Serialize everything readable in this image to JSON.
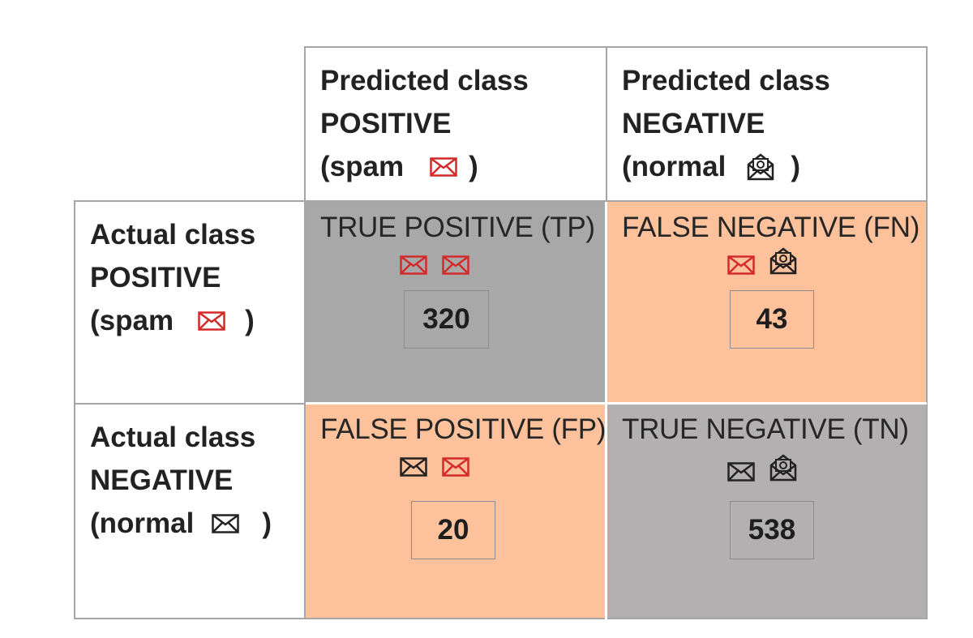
{
  "columns": [
    {
      "line1": "Predicted class",
      "line2": "POSITIVE",
      "open": "(spam",
      "close": ")",
      "icon": "red-envelope-icon"
    },
    {
      "line1": "Predicted class",
      "line2": "NEGATIVE",
      "open": "(normal",
      "close": ")",
      "icon": "open-envelope-at-icon"
    }
  ],
  "rows": [
    {
      "line1": "Actual class",
      "line2": "POSITIVE",
      "open": "(spam",
      "close": ")",
      "icon": "red-envelope-icon"
    },
    {
      "line1": "Actual class",
      "line2": "NEGATIVE",
      "open": "(normal",
      "close": ")",
      "icon": "black-envelope-icon"
    }
  ],
  "cells": {
    "tp": {
      "label": "TRUE POSITIVE (TP)",
      "value": "320",
      "color": "#a8a8a8",
      "icons": [
        "red-envelope-icon",
        "red-envelope-icon"
      ]
    },
    "fn": {
      "label": "FALSE NEGATIVE (FN)",
      "value": "43",
      "color": "#fdc29c",
      "icons": [
        "red-envelope-icon",
        "open-envelope-at-icon"
      ]
    },
    "fp": {
      "label": "FALSE POSITIVE (FP)",
      "value": "20",
      "color": "#fdc29c",
      "icons": [
        "black-envelope-icon",
        "red-envelope-icon"
      ]
    },
    "tn": {
      "label": "TRUE NEGATIVE (TN)",
      "value": "538",
      "color": "#b2b0b0",
      "icons": [
        "black-envelope-icon",
        "open-envelope-at-icon"
      ]
    }
  },
  "colors": {
    "border": "#a6a6a6",
    "red_icon": "#d42a2a",
    "black_icon": "#222222"
  }
}
